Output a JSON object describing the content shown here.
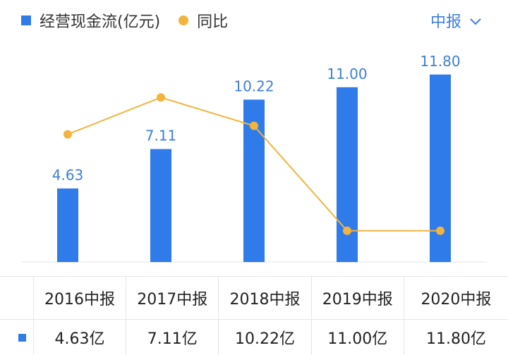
{
  "legend": {
    "bar_label": "经营现金流(亿元)",
    "line_label": "同比"
  },
  "period_selector": {
    "label": "中报"
  },
  "colors": {
    "bar": "#2f7bea",
    "line": "#f2b43c",
    "label": "#3d7fd9",
    "text": "#222222",
    "grid": "#e3e6eb"
  },
  "chart_data": {
    "type": "bar",
    "categories": [
      "2016中报",
      "2017中报",
      "2018中报",
      "2019中报",
      "2020中报"
    ],
    "series": [
      {
        "name": "经营现金流(亿元)",
        "type": "bar",
        "values": [
          4.63,
          7.11,
          10.22,
          11.0,
          11.8
        ],
        "labels": [
          "4.63",
          "7.11",
          "10.22",
          "11.00",
          "11.80"
        ]
      },
      {
        "name": "同比",
        "type": "line",
        "values": [
          40,
          53,
          43,
          6,
          6
        ]
      }
    ],
    "bar_ylim": [
      0,
      12.5
    ],
    "line_ylim": [
      -5,
      65
    ],
    "grid": false,
    "legend": "top-left"
  },
  "table": {
    "headers": [
      "2016中报",
      "2017中报",
      "2018中报",
      "2019中报",
      "2020中报"
    ],
    "values": [
      "4.63亿",
      "7.11亿",
      "10.22亿",
      "11.00亿",
      "11.80亿"
    ]
  }
}
